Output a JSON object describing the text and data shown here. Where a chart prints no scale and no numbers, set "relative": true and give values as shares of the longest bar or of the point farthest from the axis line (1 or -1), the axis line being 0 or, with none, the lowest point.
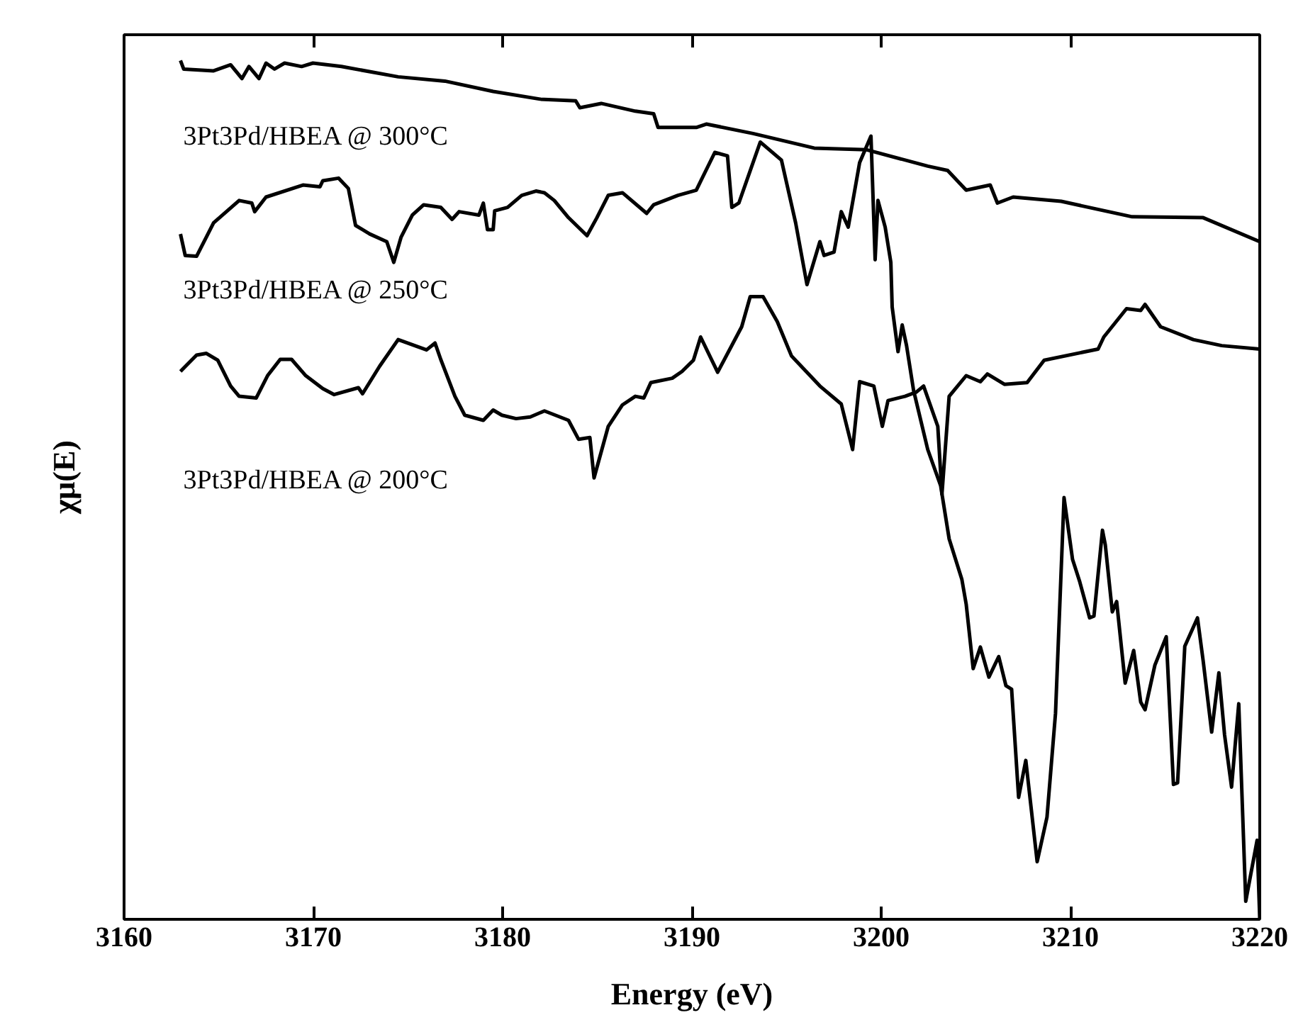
{
  "chart_data": {
    "type": "line",
    "xlabel": "Energy (eV)",
    "ylabel": "χμ(E)",
    "relative": true,
    "xlim": [
      3160,
      3220
    ],
    "xticks": [
      3160,
      3170,
      3180,
      3190,
      3200,
      3210,
      3220
    ],
    "grid": false,
    "marker": "none",
    "line_style": "solid",
    "series": [
      {
        "name": "3Pt3Pd/HBEA @ 300°C",
        "color": "#000000",
        "x": [
          3162.98,
          3163.15,
          3164.73,
          3165.63,
          3166.23,
          3166.6,
          3167.13,
          3167.5,
          3167.95,
          3168.48,
          3169.38,
          3169.98,
          3171.48,
          3174.48,
          3176.95,
          3179.5,
          3181.98,
          3183.86,
          3184.08,
          3185.21,
          3187.01,
          3187.98,
          3188.21,
          3190.23,
          3190.76,
          3193.23,
          3196.46,
          3199.24,
          3202.46,
          3203.51,
          3204.49,
          3205.76,
          3206.14,
          3206.97,
          3209.51,
          3213.26,
          3217.01,
          3220
        ],
        "values": [
          1.0,
          0.99,
          0.988,
          0.995,
          0.979,
          0.993,
          0.979,
          0.997,
          0.99,
          0.997,
          0.993,
          0.997,
          0.993,
          0.981,
          0.976,
          0.964,
          0.955,
          0.953,
          0.945,
          0.95,
          0.941,
          0.938,
          0.922,
          0.922,
          0.926,
          0.915,
          0.898,
          0.896,
          0.877,
          0.872,
          0.849,
          0.855,
          0.834,
          0.841,
          0.836,
          0.818,
          0.817,
          0.789
        ]
      },
      {
        "name": "3Pt3Pd/HBEA @ 250°C",
        "color": "#000000",
        "x": [
          3162.98,
          3163.23,
          3163.83,
          3164.73,
          3166.08,
          3166.75,
          3166.9,
          3167.5,
          3169.45,
          3170.35,
          3170.5,
          3171.33,
          3171.85,
          3172.23,
          3172.98,
          3173.88,
          3174.25,
          3174.63,
          3175.23,
          3175.83,
          3176.73,
          3177.33,
          3177.7,
          3178.75,
          3178.98,
          3179.2,
          3179.5,
          3179.58,
          3180.26,
          3181.01,
          3181.76,
          3182.21,
          3182.73,
          3183.48,
          3184.46,
          3184.98,
          3185.58,
          3186.33,
          3187.61,
          3187.98,
          3189.26,
          3190.23,
          3191.21,
          3191.88,
          3192.11,
          3192.48,
          3193.61,
          3194.73,
          3195.48,
          3196.08,
          3196.76,
          3196.98,
          3197.51,
          3197.89,
          3198.26,
          3198.86,
          3199.46,
          3199.68,
          3199.83,
          3200.21,
          3200.51,
          3200.58,
          3200.89,
          3201.11,
          3201.34,
          3201.71,
          3202.46,
          3203.14,
          3203.59,
          3204.26,
          3204.49,
          3204.86,
          3205.24,
          3205.69,
          3206.21,
          3206.59,
          3206.89,
          3207.26,
          3207.64,
          3208.24,
          3208.76,
          3209.21,
          3209.66,
          3210.11,
          3210.49,
          3211.01,
          3211.24,
          3211.69,
          3211.84,
          3212.21,
          3212.44,
          3212.89,
          3213.34,
          3213.71,
          3213.94,
          3214.46,
          3215.06,
          3215.44,
          3215.66,
          3216.04,
          3216.71,
          3217.01,
          3217.46,
          3217.84,
          3218.14,
          3218.51,
          3218.89,
          3219.26,
          3219.86,
          3220
        ],
        "values": [
          0.798,
          0.773,
          0.772,
          0.811,
          0.837,
          0.834,
          0.824,
          0.841,
          0.855,
          0.853,
          0.86,
          0.863,
          0.851,
          0.808,
          0.798,
          0.789,
          0.765,
          0.794,
          0.82,
          0.832,
          0.829,
          0.815,
          0.824,
          0.82,
          0.834,
          0.803,
          0.803,
          0.825,
          0.829,
          0.843,
          0.848,
          0.846,
          0.837,
          0.817,
          0.796,
          0.817,
          0.843,
          0.846,
          0.822,
          0.832,
          0.843,
          0.849,
          0.893,
          0.889,
          0.829,
          0.834,
          0.905,
          0.884,
          0.811,
          0.739,
          0.789,
          0.773,
          0.777,
          0.824,
          0.806,
          0.881,
          0.912,
          0.768,
          0.837,
          0.806,
          0.765,
          0.713,
          0.661,
          0.692,
          0.668,
          0.616,
          0.547,
          0.505,
          0.443,
          0.396,
          0.367,
          0.292,
          0.317,
          0.282,
          0.306,
          0.272,
          0.268,
          0.142,
          0.185,
          0.067,
          0.119,
          0.24,
          0.491,
          0.419,
          0.393,
          0.351,
          0.353,
          0.453,
          0.436,
          0.358,
          0.37,
          0.275,
          0.313,
          0.253,
          0.244,
          0.296,
          0.329,
          0.157,
          0.159,
          0.318,
          0.351,
          0.301,
          0.218,
          0.287,
          0.215,
          0.154,
          0.251,
          0.021,
          0.092,
          0.0
        ]
      },
      {
        "name": "3Pt3Pd/HBEA @ 200°C",
        "color": "#000000",
        "x": [
          3162.98,
          3163.83,
          3164.35,
          3164.95,
          3165.63,
          3166.08,
          3166.98,
          3167.58,
          3168.25,
          3168.85,
          3169.6,
          3170.5,
          3171.1,
          3172.38,
          3172.6,
          3173.5,
          3174.48,
          3175.98,
          3176.43,
          3176.73,
          3177.48,
          3178.0,
          3178.98,
          3179.5,
          3179.96,
          3180.71,
          3181.46,
          3182.21,
          3183.48,
          3184.01,
          3184.61,
          3184.83,
          3185.58,
          3186.33,
          3187.01,
          3187.46,
          3187.83,
          3188.96,
          3189.48,
          3190.08,
          3190.46,
          3191.36,
          3192.63,
          3193.08,
          3193.76,
          3194.51,
          3195.26,
          3196.76,
          3197.89,
          3198.49,
          3198.86,
          3199.61,
          3200.06,
          3200.36,
          3201.26,
          3201.86,
          3202.24,
          3202.99,
          3203.21,
          3203.59,
          3204.49,
          3205.24,
          3205.61,
          3206.51,
          3207.71,
          3208.61,
          3211.46,
          3211.76,
          3212.96,
          3213.71,
          3213.94,
          3214.76,
          3216.49,
          3217.99,
          3220
        ],
        "values": [
          0.638,
          0.657,
          0.659,
          0.651,
          0.621,
          0.609,
          0.607,
          0.633,
          0.652,
          0.652,
          0.633,
          0.618,
          0.611,
          0.619,
          0.612,
          0.644,
          0.675,
          0.663,
          0.671,
          0.652,
          0.609,
          0.587,
          0.581,
          0.593,
          0.587,
          0.583,
          0.585,
          0.592,
          0.581,
          0.559,
          0.561,
          0.514,
          0.574,
          0.599,
          0.609,
          0.607,
          0.625,
          0.63,
          0.638,
          0.651,
          0.678,
          0.637,
          0.69,
          0.725,
          0.725,
          0.696,
          0.656,
          0.621,
          0.6,
          0.547,
          0.626,
          0.621,
          0.574,
          0.604,
          0.609,
          0.614,
          0.621,
          0.574,
          0.495,
          0.609,
          0.633,
          0.626,
          0.635,
          0.623,
          0.625,
          0.651,
          0.664,
          0.678,
          0.711,
          0.709,
          0.716,
          0.69,
          0.675,
          0.668,
          0.664
        ]
      }
    ]
  }
}
